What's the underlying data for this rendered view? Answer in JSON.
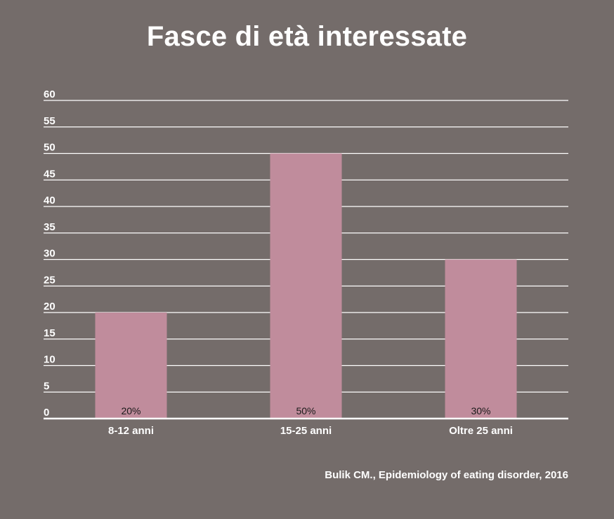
{
  "chart_data": {
    "type": "bar",
    "title": "Fasce di età interessate",
    "categories": [
      "8-12 anni",
      "15-25 anni",
      "Oltre 25 anni"
    ],
    "values": [
      20,
      50,
      30
    ],
    "data_labels": [
      "20%",
      "50%",
      "30%"
    ],
    "ylim": [
      0,
      60
    ],
    "yticks": [
      0,
      5,
      10,
      15,
      20,
      25,
      30,
      35,
      40,
      45,
      50,
      55,
      60
    ],
    "xlabel": "",
    "ylabel": "",
    "grid": true,
    "legend": "none"
  },
  "source": "Bulik CM., Epidemiology of eating disorder, 2016",
  "colors": {
    "background": "#746c6a",
    "bar": "#c08c9c",
    "grid": "#ffffff",
    "text": "#ffffff",
    "data_label": "#1a1a1a"
  }
}
